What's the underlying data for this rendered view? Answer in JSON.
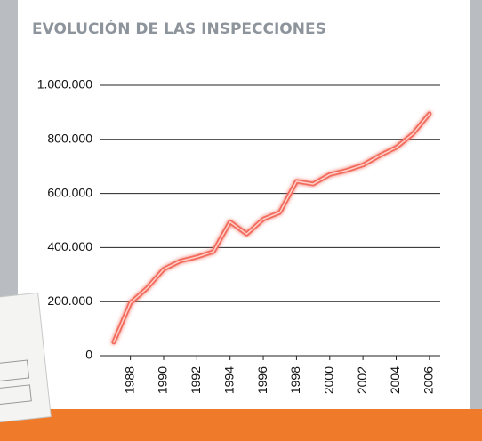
{
  "chart_data": {
    "type": "line",
    "title": "EVOLUCIÓN DE LAS INSPECCIONES",
    "x": [
      1987,
      1988,
      1989,
      1990,
      1991,
      1992,
      1993,
      1994,
      1995,
      1996,
      1997,
      1998,
      1999,
      2000,
      2001,
      2002,
      2003,
      2004,
      2005,
      2006
    ],
    "series": [
      {
        "name": "Inspecciones",
        "color": "#f26b5b",
        "values": [
          50000,
          195000,
          250000,
          320000,
          350000,
          365000,
          385000,
          495000,
          450000,
          505000,
          530000,
          645000,
          635000,
          670000,
          685000,
          705000,
          740000,
          770000,
          820000,
          895000
        ]
      }
    ],
    "xlim": [
      1986.2,
      2006.65
    ],
    "xticks": [
      1988,
      1990,
      1992,
      1994,
      1996,
      1998,
      2000,
      2002,
      2004,
      2006
    ],
    "ylim": [
      0,
      1000000
    ],
    "yticks": [
      0,
      {
        "value": 200000,
        "label": "200.000"
      },
      {
        "value": 400000,
        "label": "400.000"
      },
      {
        "value": 600000,
        "label": "600.000"
      },
      {
        "value": 800000,
        "label": "800.000"
      },
      {
        "value": 1000000,
        "label": "1.000.000"
      }
    ],
    "grid": true
  }
}
